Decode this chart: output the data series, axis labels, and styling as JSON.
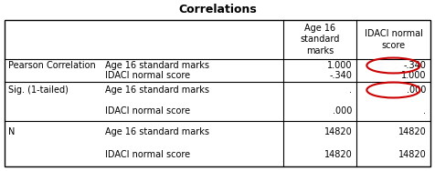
{
  "title": "Correlations",
  "col_headers": [
    "",
    "",
    "Age 16\nstandard\nmarks",
    "IDACI normal\nscore"
  ],
  "rows": [
    [
      "Pearson Correlation",
      "Age 16 standard marks",
      "1.000",
      "-.340"
    ],
    [
      "",
      "IDACI normal score",
      "-.340",
      "1.000"
    ],
    [
      "Sig. (1-tailed)",
      "Age 16 standard marks",
      ".",
      ".000"
    ],
    [
      "",
      "IDACI normal score",
      ".000",
      "."
    ],
    [
      "N",
      "Age 16 standard marks",
      "14820",
      "14820"
    ],
    [
      "",
      "IDACI normal score",
      "14820",
      "14820"
    ]
  ],
  "circled_cells": [
    [
      0,
      3
    ],
    [
      2,
      3
    ]
  ],
  "background_color": "#ffffff",
  "border_color": "#000000",
  "text_color": "#000000",
  "circle_color": "#cc0000",
  "title_fontsize": 9,
  "header_fontsize": 7,
  "cell_fontsize": 7,
  "section_label_fontsize": 7
}
